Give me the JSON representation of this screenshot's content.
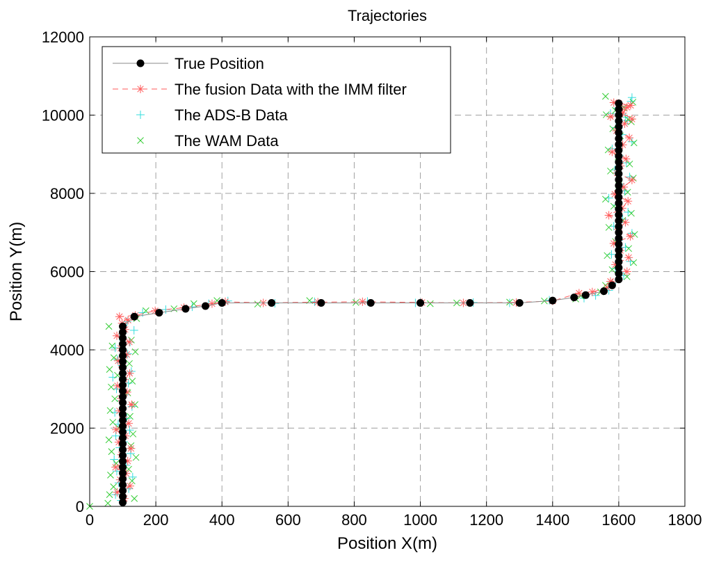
{
  "chart_data": {
    "type": "scatter",
    "title": "Trajectories",
    "xlabel": "Position X(m)",
    "ylabel": "Position Y(m)",
    "xlim": [
      0,
      1800
    ],
    "ylim": [
      0,
      12000
    ],
    "xticks": [
      0,
      200,
      400,
      600,
      800,
      1000,
      1200,
      1400,
      1600,
      1800
    ],
    "yticks": [
      0,
      2000,
      4000,
      6000,
      8000,
      10000,
      12000
    ],
    "grid": true,
    "legend_position": "top-left",
    "series": [
      {
        "name": "True Position",
        "marker": "filled-circle",
        "line": "solid",
        "color": "#000000",
        "line_color": "#888888",
        "x": [
          100,
          100,
          100,
          100,
          100,
          100,
          100,
          100,
          100,
          100,
          100,
          100,
          100,
          100,
          100,
          100,
          100,
          100,
          100,
          100,
          100,
          100,
          100,
          100,
          100,
          100,
          100,
          100,
          100,
          100,
          100,
          135,
          210,
          290,
          350,
          400,
          550,
          700,
          850,
          1000,
          1150,
          1300,
          1400,
          1465,
          1500,
          1555,
          1580,
          1600,
          1600,
          1600,
          1600,
          1600,
          1600,
          1600,
          1600,
          1600,
          1600,
          1600,
          1600,
          1600,
          1600,
          1600,
          1600,
          1600,
          1600,
          1600,
          1600,
          1600,
          1600,
          1600,
          1600,
          1600,
          1600,
          1600,
          1600,
          1600,
          1600,
          1600
        ],
        "y": [
          100,
          250,
          400,
          550,
          700,
          850,
          1000,
          1150,
          1300,
          1450,
          1600,
          1750,
          1900,
          2050,
          2200,
          2350,
          2500,
          2650,
          2800,
          2950,
          3100,
          3250,
          3400,
          3550,
          3700,
          3850,
          4000,
          4150,
          4300,
          4450,
          4600,
          4850,
          4950,
          5050,
          5120,
          5200,
          5200,
          5200,
          5200,
          5200,
          5200,
          5200,
          5260,
          5340,
          5400,
          5500,
          5650,
          5800,
          5950,
          6100,
          6250,
          6400,
          6550,
          6700,
          6850,
          7000,
          7150,
          7300,
          7450,
          7600,
          7750,
          7900,
          8050,
          8200,
          8350,
          8500,
          8650,
          8800,
          8950,
          9100,
          9250,
          9400,
          9550,
          9700,
          9850,
          10000,
          10150,
          10300
        ]
      },
      {
        "name": "The fusion Data with the IMM filter",
        "marker": "asterisk",
        "line": "dashed",
        "color": "#ff5a5a",
        "x": [
          105,
          83,
          122,
          92,
          110,
          78,
          115,
          96,
          125,
          88,
          108,
          80,
          118,
          101,
          90,
          127,
          95,
          113,
          84,
          105,
          121,
          99,
          86,
          112,
          94,
          120,
          82,
          107,
          98,
          116,
          90,
          138,
          198,
          285,
          370,
          410,
          525,
          690,
          825,
          1005,
          1130,
          1290,
          1400,
          1480,
          1520,
          1565,
          1575,
          1625,
          1590,
          1630,
          1605,
          1585,
          1635,
          1598,
          1620,
          1570,
          1610,
          1628,
          1588,
          1615,
          1640,
          1595,
          1605,
          1622,
          1580,
          1612,
          1632,
          1593,
          1618,
          1575,
          1608,
          1636,
          1600,
          1585,
          1625,
          1612,
          1640
        ],
        "y": [
          200,
          360,
          520,
          680,
          840,
          1000,
          1160,
          1320,
          1480,
          1640,
          1800,
          1960,
          2120,
          2280,
          2440,
          2600,
          2760,
          2920,
          3080,
          3240,
          3400,
          3560,
          3720,
          3880,
          4040,
          4200,
          4360,
          4520,
          4680,
          4760,
          4850,
          4880,
          5000,
          5080,
          5180,
          5230,
          5200,
          5220,
          5230,
          5210,
          5200,
          5210,
          5250,
          5450,
          5480,
          5590,
          5750,
          6000,
          6180,
          6360,
          6540,
          6720,
          6900,
          7080,
          7260,
          7440,
          7620,
          7800,
          7980,
          8160,
          8340,
          8520,
          8700,
          8880,
          9060,
          9240,
          9420,
          9600,
          9780,
          9960,
          10140,
          10250,
          10300,
          10320,
          10200,
          10050,
          9900
        ]
      },
      {
        "name": "The ADS-B Data",
        "marker": "plus",
        "line": "none",
        "color": "#33dddd",
        "x": [
          95,
          78,
          118,
          88,
          130,
          82,
          110,
          74,
          124,
          91,
          103,
          79,
          121,
          86,
          112,
          76,
          128,
          93,
          107,
          81,
          117,
          70,
          126,
          98,
          84,
          115,
          77,
          122,
          90,
          134,
          113,
          160,
          230,
          310,
          360,
          418,
          560,
          680,
          840,
          985,
          1160,
          1270,
          1390,
          1495,
          1530,
          1570,
          1580,
          1615,
          1590,
          1635,
          1578,
          1620,
          1600,
          1640,
          1585,
          1612,
          1628,
          1595,
          1570,
          1618,
          1605,
          1633,
          1588,
          1623,
          1602,
          1580,
          1640,
          1610,
          1592,
          1626,
          1575,
          1608,
          1637,
          1598,
          1620,
          1640
        ],
        "y": [
          150,
          300,
          450,
          600,
          750,
          900,
          1050,
          1200,
          1350,
          1500,
          1650,
          1800,
          1950,
          2100,
          2250,
          2400,
          2550,
          2700,
          2850,
          3000,
          3150,
          3300,
          3450,
          3600,
          3750,
          3900,
          4050,
          4200,
          4350,
          4500,
          4720,
          4950,
          5030,
          5100,
          5180,
          5250,
          5190,
          5230,
          5240,
          5200,
          5210,
          5200,
          5270,
          5320,
          5390,
          5520,
          5700,
          5900,
          6080,
          6260,
          6440,
          6620,
          6800,
          6980,
          7160,
          7340,
          7520,
          7700,
          7880,
          8060,
          8240,
          8420,
          8600,
          8780,
          8960,
          9140,
          9320,
          9500,
          9680,
          9860,
          10040,
          10220,
          10350,
          10180,
          9950,
          10450
        ]
      },
      {
        "name": "The WAM Data",
        "marker": "x",
        "line": "none",
        "color": "#33cc33",
        "x": [
          0,
          55,
          60,
          135,
          72,
          128,
          63,
          118,
          80,
          140,
          66,
          125,
          58,
          131,
          88,
          70,
          122,
          62,
          137,
          76,
          115,
          65,
          129,
          84,
          60,
          120,
          73,
          138,
          68,
          126,
          58,
          142,
          170,
          255,
          315,
          385,
          508,
          665,
          805,
          1030,
          1110,
          1270,
          1375,
          1470,
          1485,
          1545,
          1560,
          1625,
          1580,
          1645,
          1565,
          1630,
          1590,
          1648,
          1570,
          1612,
          1638,
          1585,
          1560,
          1627,
          1600,
          1644,
          1575,
          1633,
          1598,
          1568,
          1646,
          1605,
          1582,
          1638,
          1562,
          1615,
          1643,
          1590,
          1628,
          1560
        ],
        "y": [
          0,
          80,
          300,
          200,
          500,
          650,
          800,
          950,
          1100,
          1250,
          1400,
          1550,
          1700,
          1850,
          2000,
          2150,
          2300,
          2450,
          2600,
          2750,
          2900,
          3050,
          3200,
          3350,
          3500,
          3650,
          3800,
          3950,
          4100,
          4250,
          4600,
          4800,
          5000,
          5050,
          5180,
          5260,
          5170,
          5260,
          5210,
          5180,
          5200,
          5220,
          5250,
          5300,
          5380,
          5480,
          5650,
          5870,
          6050,
          6230,
          6410,
          6590,
          6770,
          6950,
          7130,
          7310,
          7490,
          7670,
          7850,
          8030,
          8210,
          8390,
          8570,
          8750,
          8930,
          9110,
          9290,
          9470,
          9650,
          9830,
          10010,
          10190,
          10330,
          10120,
          9890,
          10480
        ]
      }
    ]
  }
}
